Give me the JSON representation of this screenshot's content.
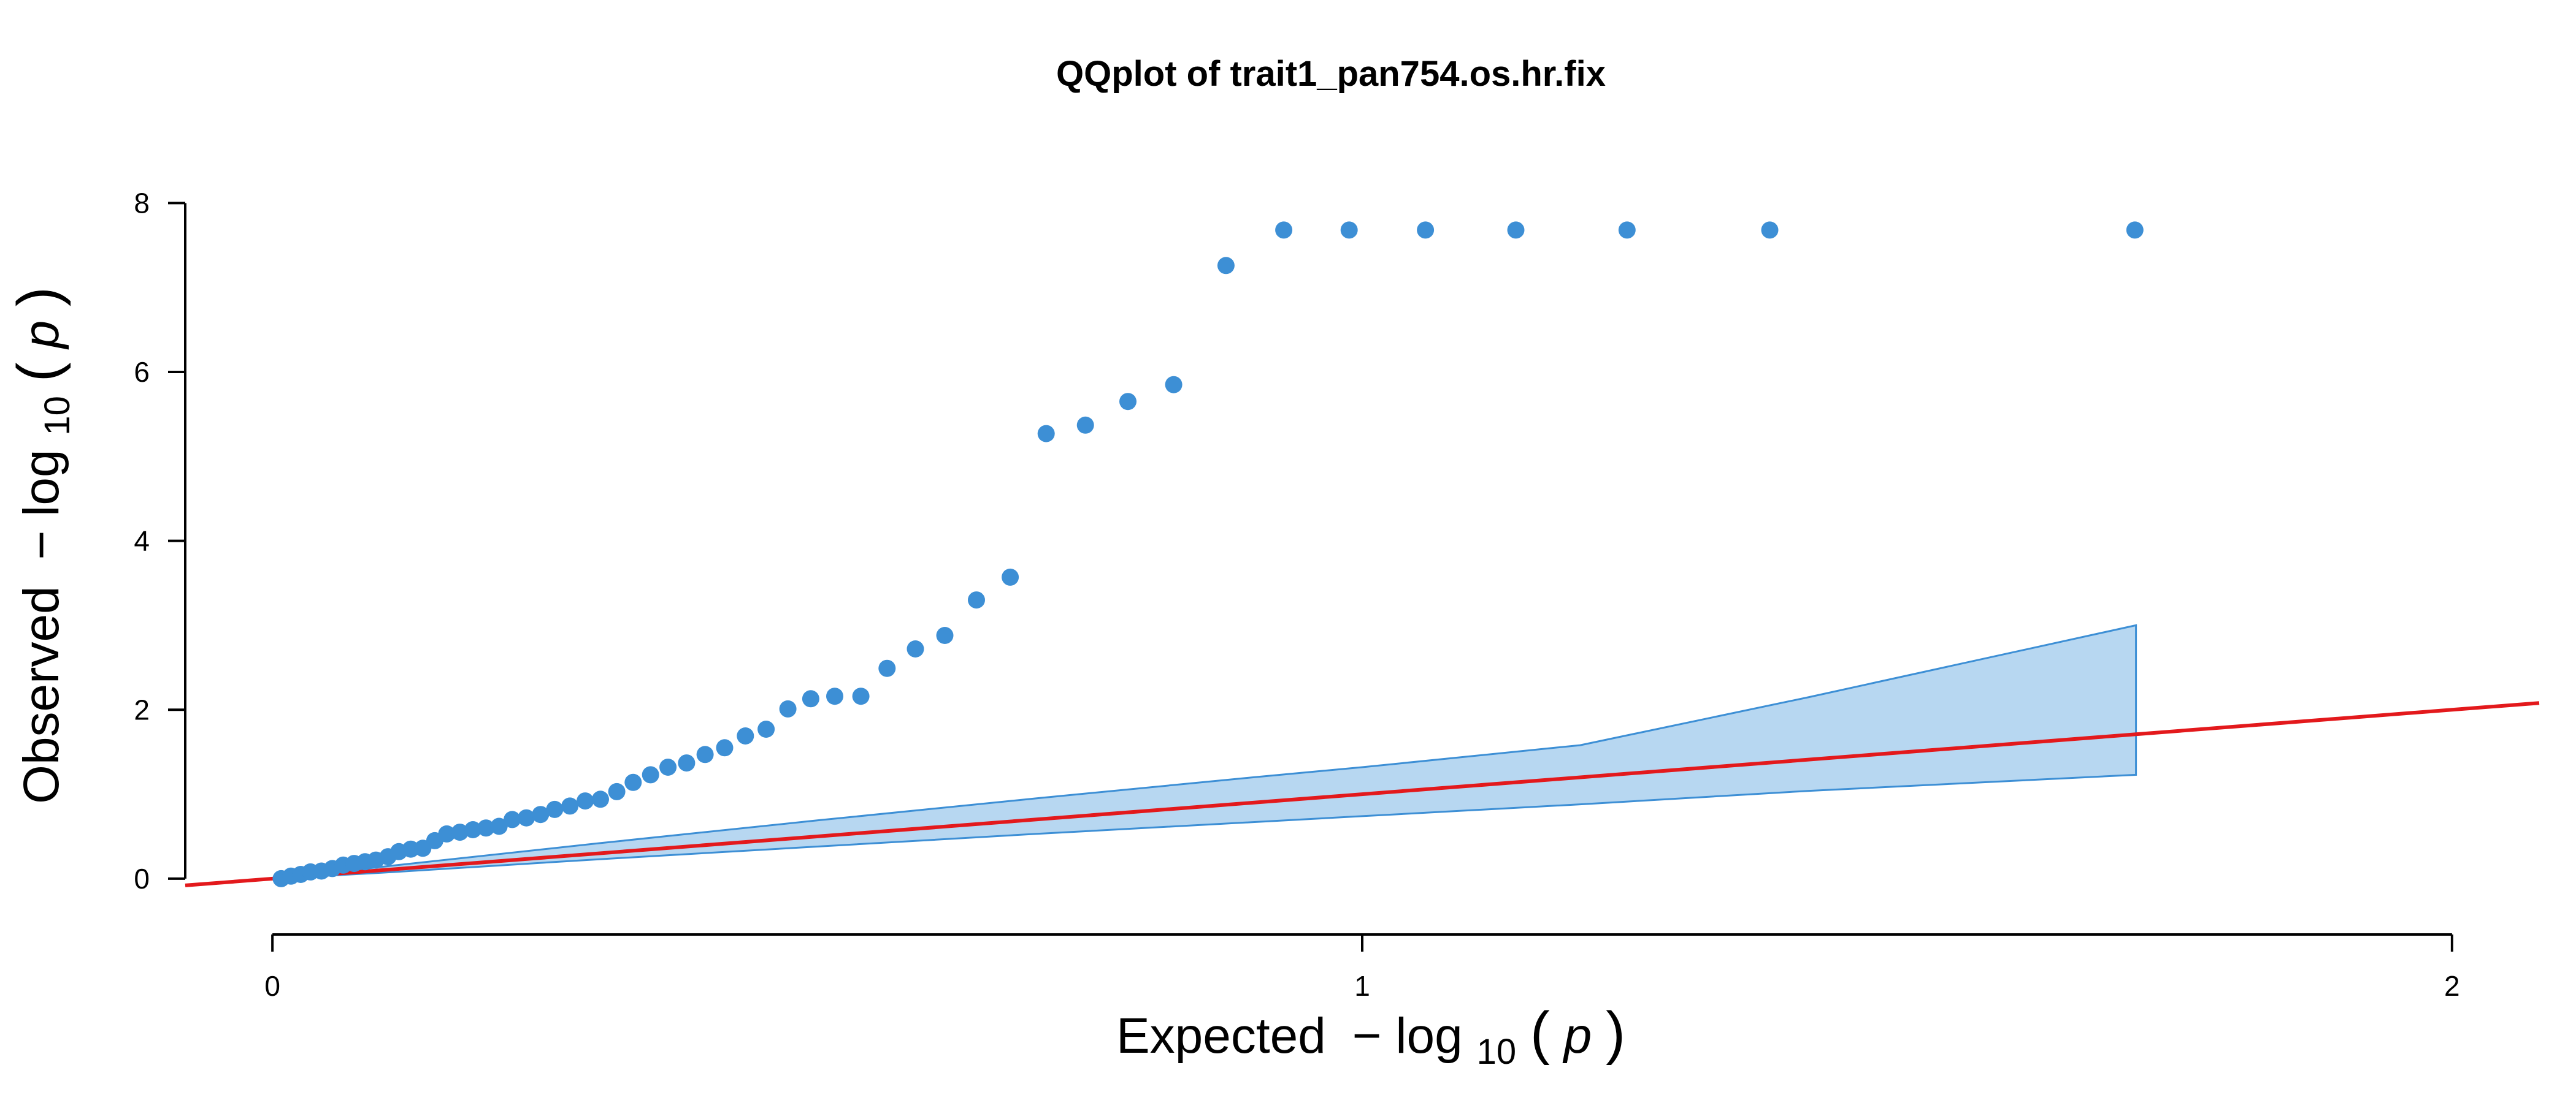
{
  "chart_data": {
    "type": "scatter",
    "title": "QQplot of trait1_pan754.os.hr.fix",
    "xlabel": {
      "prefix": "Expected",
      "minus": "−",
      "log": "log",
      "base": "10",
      "open": "(",
      "var": "p",
      "close": ")"
    },
    "ylabel": {
      "prefix": "Observed",
      "minus": "−",
      "log": "log",
      "base": "10",
      "open": "(",
      "var": "p",
      "close": ")"
    },
    "xlim": [
      -0.08,
      2.08
    ],
    "ylim": [
      -0.32,
      8.3
    ],
    "x_ticks": [
      {
        "value": 0,
        "label": "0"
      },
      {
        "value": 1,
        "label": "1"
      },
      {
        "value": 2,
        "label": "2"
      }
    ],
    "y_ticks": [
      {
        "value": 0,
        "label": "0"
      },
      {
        "value": 2,
        "label": "2"
      },
      {
        "value": 4,
        "label": "4"
      },
      {
        "value": 6,
        "label": "6"
      },
      {
        "value": 8,
        "label": "8"
      }
    ],
    "grid": false,
    "legend": "none",
    "colors": {
      "points": "#3d8fd5",
      "band_fill": "#b7d7f1",
      "band_stroke": "#3d8fd5",
      "reference_line": "#e3191c"
    },
    "reference_line": {
      "slope": 1,
      "intercept": 0
    },
    "confidence_band": {
      "x": [
        0.0,
        0.1,
        0.3,
        0.5,
        0.7,
        0.9,
        1.0,
        1.2,
        1.41,
        1.71
      ],
      "upper": [
        0.0,
        0.14,
        0.42,
        0.69,
        0.95,
        1.2,
        1.32,
        1.58,
        2.15,
        3.0
      ],
      "lower": [
        0.0,
        0.07,
        0.23,
        0.38,
        0.53,
        0.67,
        0.74,
        0.88,
        1.04,
        1.23
      ]
    },
    "series": [
      {
        "x": [
          0.008,
          0.017,
          0.026,
          0.035,
          0.045,
          0.055,
          0.065,
          0.075,
          0.085,
          0.095,
          0.106,
          0.116,
          0.127,
          0.138,
          0.149,
          0.16,
          0.172,
          0.184,
          0.196,
          0.208,
          0.22,
          0.233,
          0.246,
          0.259,
          0.273,
          0.287,
          0.301,
          0.316,
          0.331,
          0.347,
          0.363,
          0.38,
          0.397,
          0.415,
          0.434,
          0.453,
          0.473,
          0.494,
          0.516,
          0.54,
          0.564,
          0.59,
          0.617,
          0.646,
          0.677,
          0.71,
          0.746,
          0.785,
          0.827,
          0.875,
          0.928,
          0.988,
          1.058,
          1.141,
          1.243,
          1.374,
          1.709
        ],
        "y": [
          0.0,
          0.03,
          0.05,
          0.08,
          0.09,
          0.12,
          0.16,
          0.18,
          0.2,
          0.22,
          0.26,
          0.32,
          0.35,
          0.36,
          0.45,
          0.53,
          0.55,
          0.58,
          0.6,
          0.62,
          0.7,
          0.72,
          0.76,
          0.82,
          0.86,
          0.92,
          0.94,
          1.03,
          1.14,
          1.23,
          1.32,
          1.37,
          1.47,
          1.55,
          1.69,
          1.77,
          2.01,
          2.13,
          2.16,
          2.16,
          2.49,
          2.72,
          2.88,
          3.3,
          3.57,
          5.27,
          5.37,
          5.65,
          5.85,
          7.26,
          7.68,
          7.68,
          7.68,
          7.68,
          7.68,
          7.68,
          7.68
        ]
      }
    ]
  }
}
